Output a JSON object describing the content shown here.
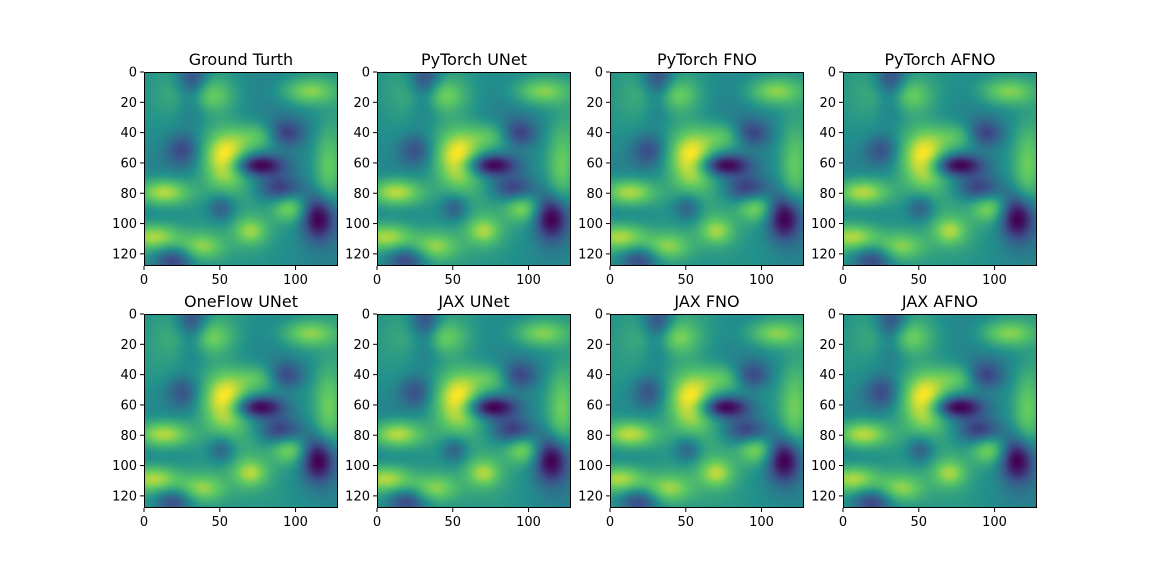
{
  "figure": {
    "colormap": "viridis",
    "colormap_stops": [
      "#440154",
      "#3b528b",
      "#21918c",
      "#5ec962",
      "#fde725"
    ]
  },
  "chart_data": [
    {
      "type": "heatmap",
      "title": "Ground Turth",
      "variant": 0,
      "xlim": [
        0,
        128
      ],
      "ylim": [
        128,
        0
      ],
      "xticks": [
        0,
        50,
        100
      ],
      "yticks": [
        0,
        20,
        40,
        60,
        80,
        100,
        120
      ],
      "grid": false
    },
    {
      "type": "heatmap",
      "title": "PyTorch UNet",
      "variant": 1,
      "xlim": [
        0,
        128
      ],
      "ylim": [
        128,
        0
      ],
      "xticks": [
        0,
        50,
        100
      ],
      "yticks": [
        0,
        20,
        40,
        60,
        80,
        100,
        120
      ],
      "grid": false
    },
    {
      "type": "heatmap",
      "title": "PyTorch FNO",
      "variant": 2,
      "xlim": [
        0,
        128
      ],
      "ylim": [
        128,
        0
      ],
      "xticks": [
        0,
        50,
        100
      ],
      "yticks": [
        0,
        20,
        40,
        60,
        80,
        100,
        120
      ],
      "grid": false
    },
    {
      "type": "heatmap",
      "title": "PyTorch AFNO",
      "variant": 3,
      "xlim": [
        0,
        128
      ],
      "ylim": [
        128,
        0
      ],
      "xticks": [
        0,
        50,
        100
      ],
      "yticks": [
        0,
        20,
        40,
        60,
        80,
        100,
        120
      ],
      "grid": false
    },
    {
      "type": "heatmap",
      "title": "OneFlow UNet",
      "variant": 4,
      "xlim": [
        0,
        128
      ],
      "ylim": [
        128,
        0
      ],
      "xticks": [
        0,
        50,
        100
      ],
      "yticks": [
        0,
        20,
        40,
        60,
        80,
        100,
        120
      ],
      "grid": false
    },
    {
      "type": "heatmap",
      "title": "JAX UNet",
      "variant": 5,
      "xlim": [
        0,
        128
      ],
      "ylim": [
        128,
        0
      ],
      "xticks": [
        0,
        50,
        100
      ],
      "yticks": [
        0,
        20,
        40,
        60,
        80,
        100,
        120
      ],
      "grid": false
    },
    {
      "type": "heatmap",
      "title": "JAX FNO",
      "variant": 6,
      "xlim": [
        0,
        128
      ],
      "ylim": [
        128,
        0
      ],
      "xticks": [
        0,
        50,
        100
      ],
      "yticks": [
        0,
        20,
        40,
        60,
        80,
        100,
        120
      ],
      "grid": false
    },
    {
      "type": "heatmap",
      "title": "JAX AFNO",
      "variant": 7,
      "xlim": [
        0,
        128
      ],
      "ylim": [
        128,
        0
      ],
      "xticks": [
        0,
        50,
        100
      ],
      "yticks": [
        0,
        20,
        40,
        60,
        80,
        100,
        120
      ],
      "grid": false
    }
  ]
}
